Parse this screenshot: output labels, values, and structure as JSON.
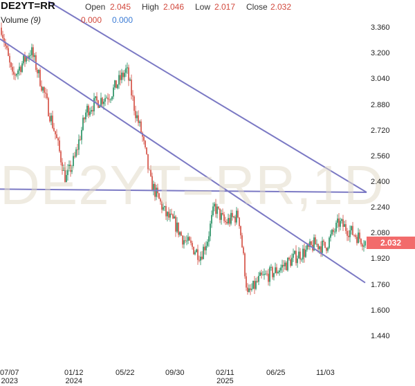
{
  "header": {
    "symbol": "DE2YT=RR",
    "open_label": "Open",
    "open_value": "2.045",
    "high_label": "High",
    "high_value": "2.046",
    "low_label": "Low",
    "low_value": "2.017",
    "close_label": "Close",
    "close_value": "2.032",
    "volume_label": "Volume",
    "volume_period": "(9)",
    "volume_value_1": "0.000",
    "volume_value_2": "0.000"
  },
  "watermark": "DE2YT=RR,1D",
  "last_price_tag": "2.032",
  "colors": {
    "up": "#1a8a5a",
    "down": "#d2483c",
    "trendline": "#7b79c4",
    "price_tag": "#f26b6b"
  },
  "chart_data": {
    "type": "candlestick",
    "y_ticks": [
      "3.360",
      "3.200",
      "3.040",
      "2.880",
      "2.720",
      "2.560",
      "2.400",
      "2.240",
      "2.080",
      "1.920",
      "1.760",
      "1.600",
      "1.440"
    ],
    "ylim": [
      1.36,
      3.42
    ],
    "x_ticks": [
      {
        "label": "07/07",
        "year": "2023"
      },
      {
        "label": "01/12",
        "year": "2024"
      },
      {
        "label": "05/22",
        "year": ""
      },
      {
        "label": "09/30",
        "year": ""
      },
      {
        "label": "02/11",
        "year": "2025"
      },
      {
        "label": "06/25",
        "year": ""
      },
      {
        "label": "11/03",
        "year": ""
      }
    ],
    "close_path_approx": [
      [
        "07/07/2023",
        3.36
      ],
      [
        "08/2023",
        3.05
      ],
      [
        "09/2023",
        3.22
      ],
      [
        "10/2023",
        2.98
      ],
      [
        "11/2023",
        2.7
      ],
      [
        "12/2023",
        2.42
      ],
      [
        "01/12/2024",
        2.55
      ],
      [
        "02/2024",
        2.85
      ],
      [
        "03/2024",
        2.9
      ],
      [
        "04/2024",
        2.95
      ],
      [
        "05/22/2024",
        3.1
      ],
      [
        "06/2024",
        2.85
      ],
      [
        "07/2024",
        2.7
      ],
      [
        "08/2024",
        2.4
      ],
      [
        "09/2024",
        2.2
      ],
      [
        "09/30/2024",
        2.15
      ],
      [
        "10/2024",
        2.05
      ],
      [
        "11/2024",
        1.95
      ],
      [
        "12/2024",
        2.05
      ],
      [
        "01/2025",
        2.25
      ],
      [
        "02/11/2025",
        2.15
      ],
      [
        "03/2025",
        2.2
      ],
      [
        "04/2025",
        1.7
      ],
      [
        "05/2025",
        1.8
      ],
      [
        "06/25/2025",
        1.85
      ],
      [
        "07/2025",
        1.9
      ],
      [
        "08/2025",
        1.95
      ],
      [
        "09/2025",
        1.98
      ],
      [
        "10/2025",
        2.02
      ],
      [
        "11/03/2025",
        2.0
      ],
      [
        "11/2025",
        2.15
      ],
      [
        "12/2025",
        2.032
      ]
    ],
    "trendlines": [
      {
        "from": [
          "07/2023",
          3.37
        ],
        "to": [
          "12/2025",
          2.34
        ]
      },
      {
        "from": [
          "07/07/2023",
          3.29
        ],
        "to": [
          "12/2025",
          1.78
        ]
      },
      {
        "from": [
          "07/07/2023",
          2.36
        ],
        "to": [
          "12/2025",
          2.34
        ]
      }
    ]
  }
}
